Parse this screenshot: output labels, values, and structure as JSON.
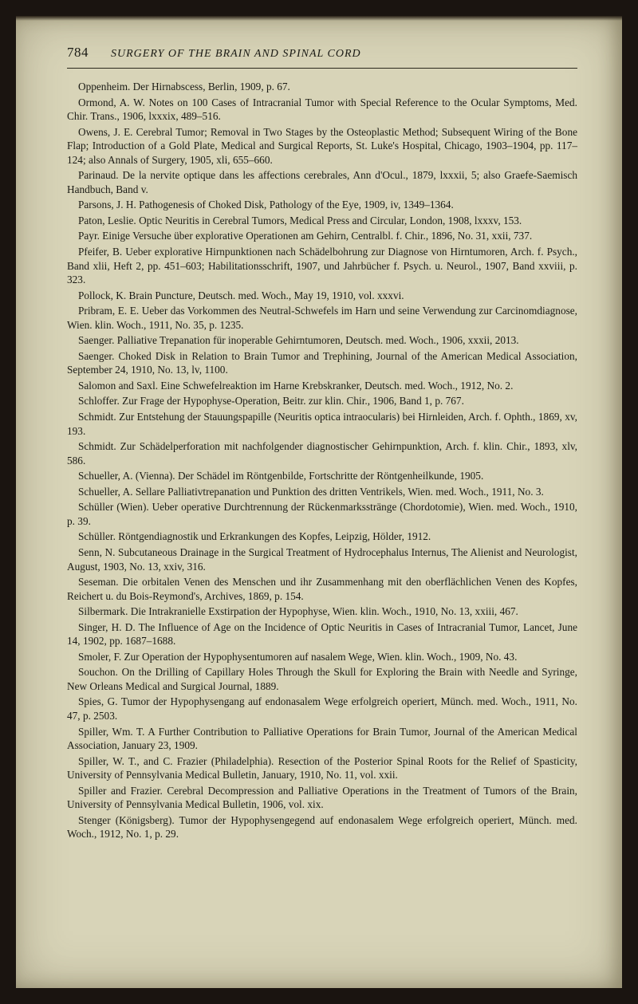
{
  "header": {
    "page_number": "784",
    "running_title": "SURGERY OF THE BRAIN AND SPINAL CORD"
  },
  "entries": [
    "Oppenheim. Der Hirnabscess, Berlin, 1909, p. 67.",
    "Ormond, A. W. Notes on 100 Cases of Intracranial Tumor with Special Reference to the Ocular Symptoms, Med. Chir. Trans., 1906, lxxxix, 489–516.",
    "Owens, J. E. Cerebral Tumor; Removal in Two Stages by the Osteoplastic Method; Subsequent Wiring of the Bone Flap; Introduction of a Gold Plate, Medical and Surgical Reports, St. Luke's Hospital, Chicago, 1903–1904, pp. 117–124; also Annals of Surgery, 1905, xli, 655–660.",
    "Parinaud. De la nervite optique dans les affections cerebrales, Ann d'Ocul., 1879, lxxxii, 5; also Graefe-Saemisch Handbuch, Band v.",
    "Parsons, J. H. Pathogenesis of Choked Disk, Pathology of the Eye, 1909, iv, 1349–1364.",
    "Paton, Leslie. Optic Neuritis in Cerebral Tumors, Medical Press and Circular, London, 1908, lxxxv, 153.",
    "Payr. Einige Versuche über explorative Operationen am Gehirn, Centralbl. f. Chir., 1896, No. 31, xxii, 737.",
    "Pfeifer, B. Ueber explorative Hirnpunktionen nach Schädelbohrung zur Diagnose von Hirntumoren, Arch. f. Psych., Band xlii, Heft 2, pp. 451–603; Habilitationsschrift, 1907, und Jahrbücher f. Psych. u. Neurol., 1907, Band xxviii, p. 323.",
    "Pollock, K. Brain Puncture, Deutsch. med. Woch., May 19, 1910, vol. xxxvi.",
    "Pribram, E. E. Ueber das Vorkommen des Neutral-Schwefels im Harn und seine Verwendung zur Carcinomdiagnose, Wien. klin. Woch., 1911, No. 35, p. 1235.",
    "Saenger. Palliative Trepanation für inoperable Gehirntumoren, Deutsch. med. Woch., 1906, xxxii, 2013.",
    "Saenger. Choked Disk in Relation to Brain Tumor and Trephining, Journal of the American Medical Association, September 24, 1910, No. 13, lv, 1100.",
    "Salomon and Saxl. Eine Schwefelreaktion im Harne Krebskranker, Deutsch. med. Woch., 1912, No. 2.",
    "Schloffer. Zur Frage der Hypophyse-Operation, Beitr. zur klin. Chir., 1906, Band 1, p. 767.",
    "Schmidt. Zur Entstehung der Stauungspapille (Neuritis optica intraocularis) bei Hirnleiden, Arch. f. Ophth., 1869, xv, 193.",
    "Schmidt. Zur Schädelperforation mit nachfolgender diagnostischer Gehirnpunktion, Arch. f. klin. Chir., 1893, xlv, 586.",
    "Schueller, A. (Vienna). Der Schädel im Röntgenbilde, Fortschritte der Röntgenheilkunde, 1905.",
    "Schueller, A. Sellare Palliativtrepanation und Punktion des dritten Ventrikels, Wien. med. Woch., 1911, No. 3.",
    "Schüller (Wien). Ueber operative Durchtrennung der Rückenmarksstränge (Chordotomie), Wien. med. Woch., 1910, p. 39.",
    "Schüller. Röntgendiagnostik und Erkrankungen des Kopfes, Leipzig, Hölder, 1912.",
    "Senn, N. Subcutaneous Drainage in the Surgical Treatment of Hydrocephalus Internus, The Alienist and Neurologist, August, 1903, No. 13, xxiv, 316.",
    "Seseman. Die orbitalen Venen des Menschen und ihr Zusammenhang mit den oberflächlichen Venen des Kopfes, Reichert u. du Bois-Reymond's, Archives, 1869, p. 154.",
    "Silbermark. Die Intrakranielle Exstirpation der Hypophyse, Wien. klin. Woch., 1910, No. 13, xxiii, 467.",
    "Singer, H. D. The Influence of Age on the Incidence of Optic Neuritis in Cases of Intracranial Tumor, Lancet, June 14, 1902, pp. 1687–1688.",
    "Smoler, F. Zur Operation der Hypophysentumoren auf nasalem Wege, Wien. klin. Woch., 1909, No. 43.",
    "Souchon. On the Drilling of Capillary Holes Through the Skull for Exploring the Brain with Needle and Syringe, New Orleans Medical and Surgical Journal, 1889.",
    "Spies, G. Tumor der Hypophysengang auf endonasalem Wege erfolgreich operiert, Münch. med. Woch., 1911, No. 47, p. 2503.",
    "Spiller, Wm. T. A Further Contribution to Palliative Operations for Brain Tumor, Journal of the American Medical Association, January 23, 1909.",
    "Spiller, W. T., and C. Frazier (Philadelphia). Resection of the Posterior Spinal Roots for the Relief of Spasticity, University of Pennsylvania Medical Bulletin, January, 1910, No. 11, vol. xxii.",
    "Spiller and Frazier. Cerebral Decompression and Palliative Operations in the Treatment of Tumors of the Brain, University of Pennsylvania Medical Bulletin, 1906, vol. xix.",
    "Stenger (Königsberg). Tumor der Hypophysengegend auf endonasalem Wege erfolgreich operiert, Münch. med. Woch., 1912, No. 1, p. 29."
  ]
}
